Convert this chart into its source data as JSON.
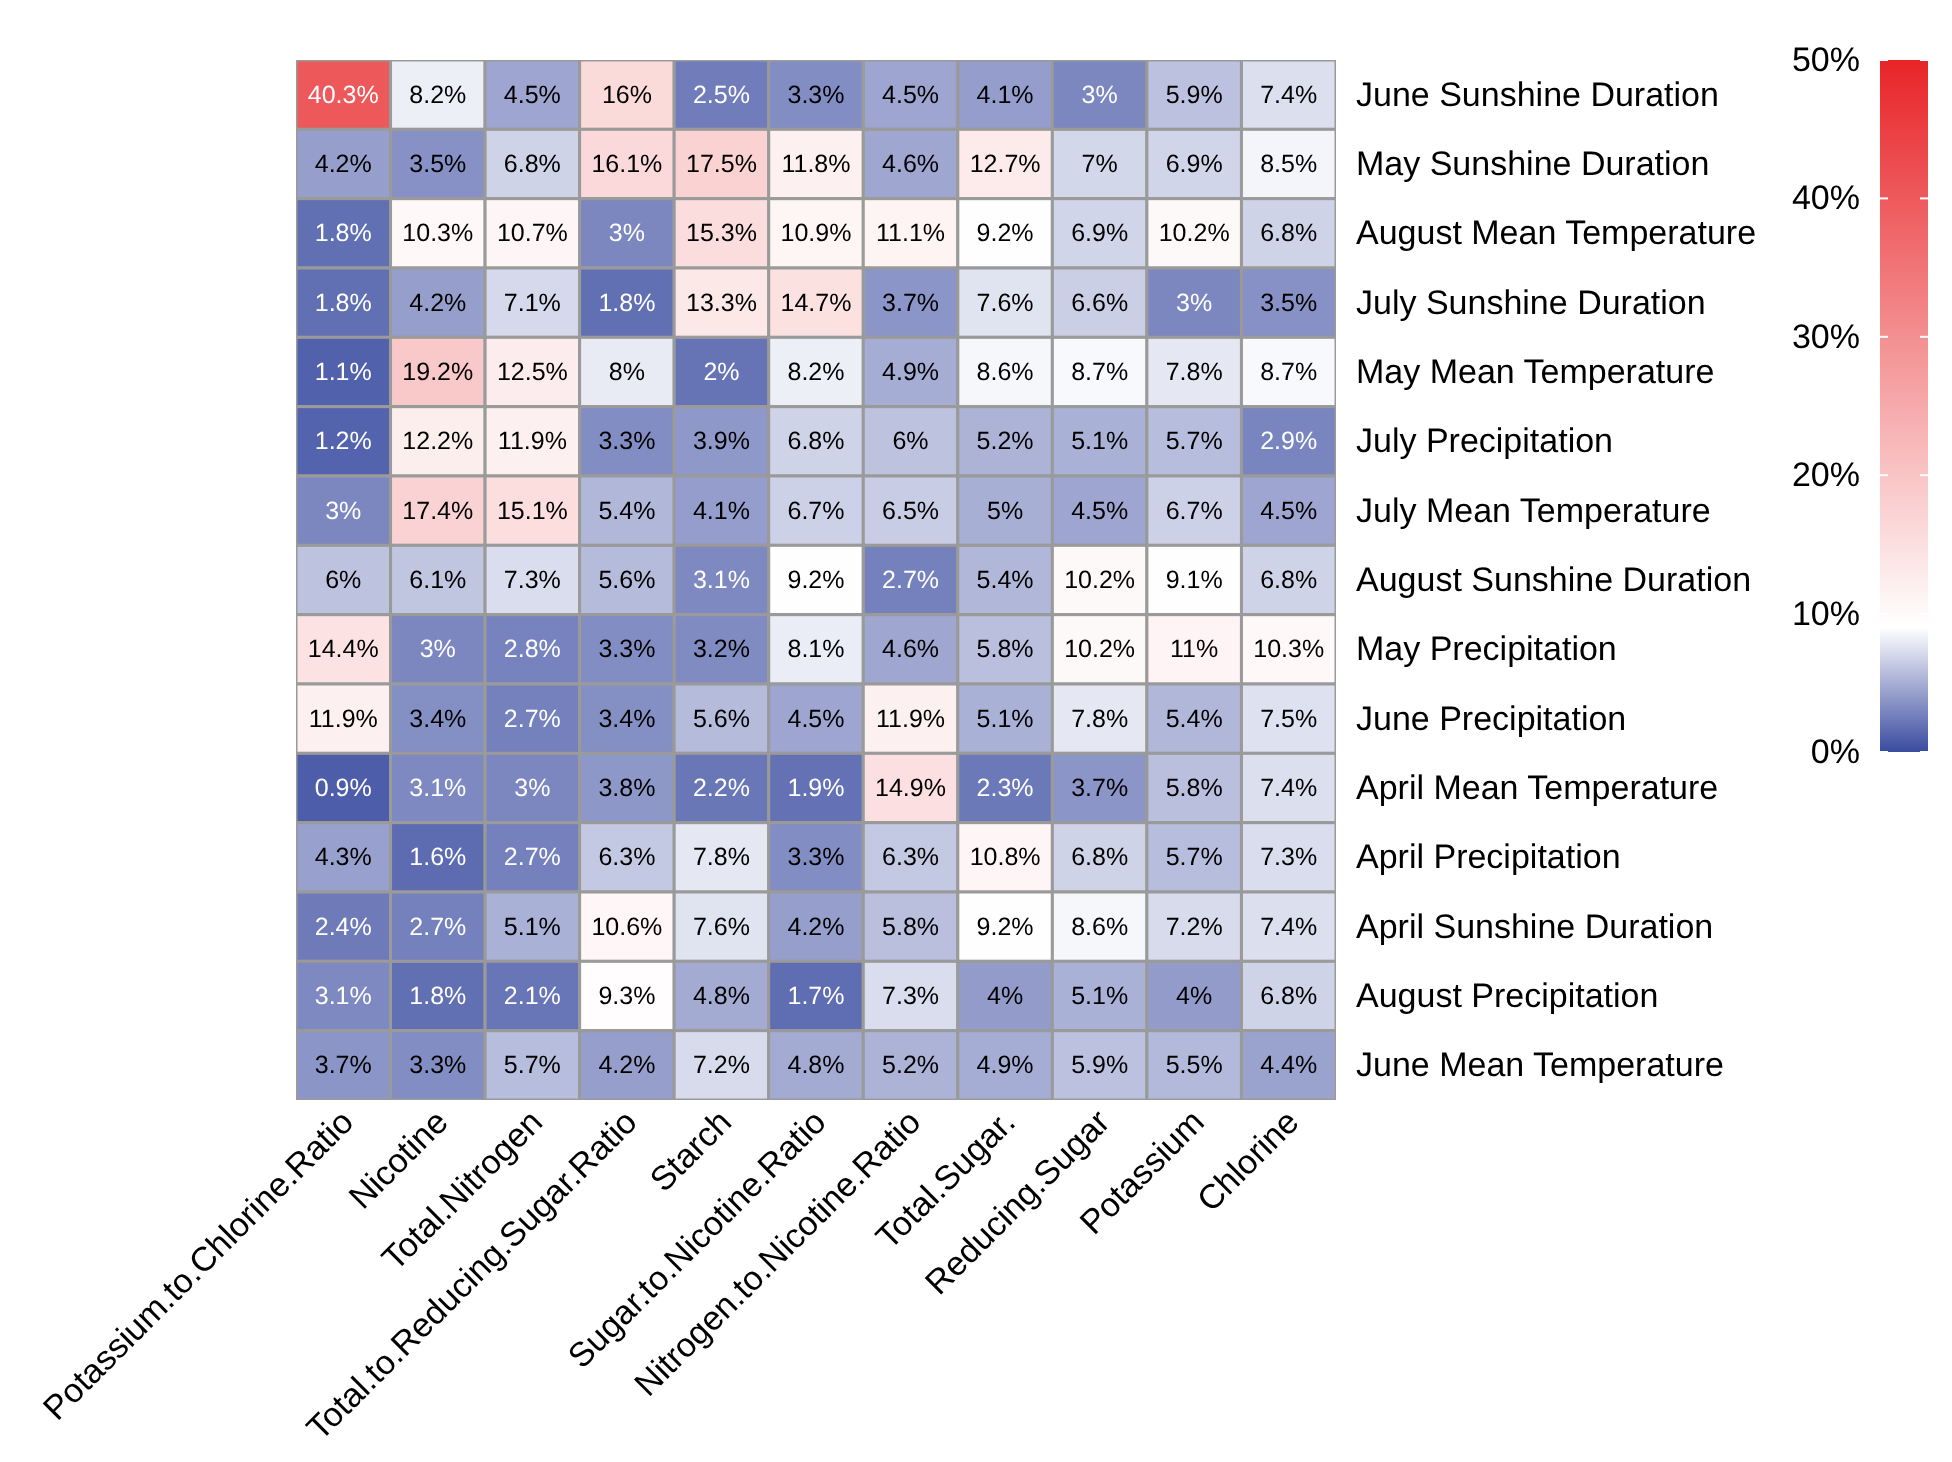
{
  "chart_data": {
    "type": "heatmap",
    "categories": [
      "Potassium.to.Chlorine.Ratio",
      "Nicotine",
      "Total.Nitrogen",
      "Total.to.Reducing.Sugar.Ratio",
      "Starch",
      "Sugar.to.Nicotine.Ratio",
      "Nitrogen.to.Nicotine.Ratio",
      "Total.Sugar.",
      "Reducing.Sugar",
      "Potassium",
      "Chlorine"
    ],
    "y_categories": [
      "June Sunshine Duration",
      "May Sunshine Duration",
      "August Mean Temperature",
      "July Sunshine Duration",
      "May Mean Temperature",
      "July Precipitation",
      "July Mean Temperature",
      "August Sunshine Duration",
      "May Precipitation",
      "June Precipitation",
      "April Mean Temperature",
      "April Precipitation",
      "April Sunshine Duration",
      "August Precipitation",
      "June Mean Temperature"
    ],
    "cells": [
      [
        40.3,
        8.2,
        4.5,
        16,
        2.5,
        3.3,
        4.5,
        4.1,
        3,
        5.9,
        7.4
      ],
      [
        4.2,
        3.5,
        6.8,
        16.1,
        17.5,
        11.8,
        4.6,
        12.7,
        7,
        6.9,
        8.5
      ],
      [
        1.8,
        10.3,
        10.7,
        3,
        15.3,
        10.9,
        11.1,
        9.2,
        6.9,
        10.2,
        6.8
      ],
      [
        1.8,
        4.2,
        7.1,
        1.8,
        13.3,
        14.7,
        3.7,
        7.6,
        6.6,
        3,
        3.5
      ],
      [
        1.1,
        19.2,
        12.5,
        8,
        2,
        8.2,
        4.9,
        8.6,
        8.7,
        7.8,
        8.7
      ],
      [
        1.2,
        12.2,
        11.9,
        3.3,
        3.9,
        6.8,
        6,
        5.2,
        5.1,
        5.7,
        2.9
      ],
      [
        3,
        17.4,
        15.1,
        5.4,
        4.1,
        6.7,
        6.5,
        5,
        4.5,
        6.7,
        4.5
      ],
      [
        6,
        6.1,
        7.3,
        5.6,
        3.1,
        9.2,
        2.7,
        5.4,
        10.2,
        9.1,
        6.8
      ],
      [
        14.4,
        3,
        2.8,
        3.3,
        3.2,
        8.1,
        4.6,
        5.8,
        10.2,
        11,
        10.3
      ],
      [
        11.9,
        3.4,
        2.7,
        3.4,
        5.6,
        4.5,
        11.9,
        5.1,
        7.8,
        5.4,
        7.5
      ],
      [
        0.9,
        3.1,
        3,
        3.8,
        2.2,
        1.9,
        14.9,
        2.3,
        3.7,
        5.8,
        7.4
      ],
      [
        4.3,
        1.6,
        2.7,
        6.3,
        7.8,
        3.3,
        6.3,
        10.8,
        6.8,
        5.7,
        7.3
      ],
      [
        2.4,
        2.7,
        5.1,
        10.6,
        7.6,
        4.2,
        5.8,
        9.2,
        8.6,
        7.2,
        7.4
      ],
      [
        3.1,
        1.8,
        2.1,
        9.3,
        4.8,
        1.7,
        7.3,
        4,
        5.1,
        4,
        6.8
      ],
      [
        3.7,
        3.3,
        5.7,
        4.2,
        7.2,
        4.8,
        5.2,
        4.9,
        5.9,
        5.5,
        4.4
      ]
    ],
    "cell_labels": [
      [
        "40.3%",
        "8.2%",
        "4.5%",
        "16%",
        "2.5%",
        "3.3%",
        "4.5%",
        "4.1%",
        "3%",
        "5.9%",
        "7.4%"
      ],
      [
        "4.2%",
        "3.5%",
        "6.8%",
        "16.1%",
        "17.5%",
        "11.8%",
        "4.6%",
        "12.7%",
        "7%",
        "6.9%",
        "8.5%"
      ],
      [
        "1.8%",
        "10.3%",
        "10.7%",
        "3%",
        "15.3%",
        "10.9%",
        "11.1%",
        "9.2%",
        "6.9%",
        "10.2%",
        "6.8%"
      ],
      [
        "1.8%",
        "4.2%",
        "7.1%",
        "1.8%",
        "13.3%",
        "14.7%",
        "3.7%",
        "7.6%",
        "6.6%",
        "3%",
        "3.5%"
      ],
      [
        "1.1%",
        "19.2%",
        "12.5%",
        "8%",
        "2%",
        "8.2%",
        "4.9%",
        "8.6%",
        "8.7%",
        "7.8%",
        "8.7%"
      ],
      [
        "1.2%",
        "12.2%",
        "11.9%",
        "3.3%",
        "3.9%",
        "6.8%",
        "6%",
        "5.2%",
        "5.1%",
        "5.7%",
        "2.9%"
      ],
      [
        "3%",
        "17.4%",
        "15.1%",
        "5.4%",
        "4.1%",
        "6.7%",
        "6.5%",
        "5%",
        "4.5%",
        "6.7%",
        "4.5%"
      ],
      [
        "6%",
        "6.1%",
        "7.3%",
        "5.6%",
        "3.1%",
        "9.2%",
        "2.7%",
        "5.4%",
        "10.2%",
        "9.1%",
        "6.8%"
      ],
      [
        "14.4%",
        "3%",
        "2.8%",
        "3.3%",
        "3.2%",
        "8.1%",
        "4.6%",
        "5.8%",
        "10.2%",
        "11%",
        "10.3%"
      ],
      [
        "11.9%",
        "3.4%",
        "2.7%",
        "3.4%",
        "5.6%",
        "4.5%",
        "11.9%",
        "5.1%",
        "7.8%",
        "5.4%",
        "7.5%"
      ],
      [
        "0.9%",
        "3.1%",
        "3%",
        "3.8%",
        "2.2%",
        "1.9%",
        "14.9%",
        "2.3%",
        "3.7%",
        "5.8%",
        "7.4%"
      ],
      [
        "4.3%",
        "1.6%",
        "2.7%",
        "6.3%",
        "7.8%",
        "3.3%",
        "6.3%",
        "10.8%",
        "6.8%",
        "5.7%",
        "7.3%"
      ],
      [
        "2.4%",
        "2.7%",
        "5.1%",
        "10.6%",
        "7.6%",
        "4.2%",
        "5.8%",
        "9.2%",
        "8.6%",
        "7.2%",
        "7.4%"
      ],
      [
        "3.1%",
        "1.8%",
        "2.1%",
        "9.3%",
        "4.8%",
        "1.7%",
        "7.3%",
        "4%",
        "5.1%",
        "4%",
        "6.8%"
      ],
      [
        "3.7%",
        "3.3%",
        "5.7%",
        "4.2%",
        "7.2%",
        "4.8%",
        "5.2%",
        "4.9%",
        "5.9%",
        "5.5%",
        "4.4%"
      ]
    ],
    "clim": [
      0,
      50
    ],
    "cticks": [
      {
        "value": 0,
        "label": "0%"
      },
      {
        "value": 10,
        "label": "10%"
      },
      {
        "value": 20,
        "label": "20%"
      },
      {
        "value": 30,
        "label": "30%"
      },
      {
        "value": 40,
        "label": "40%"
      },
      {
        "value": 50,
        "label": "50%"
      }
    ]
  }
}
